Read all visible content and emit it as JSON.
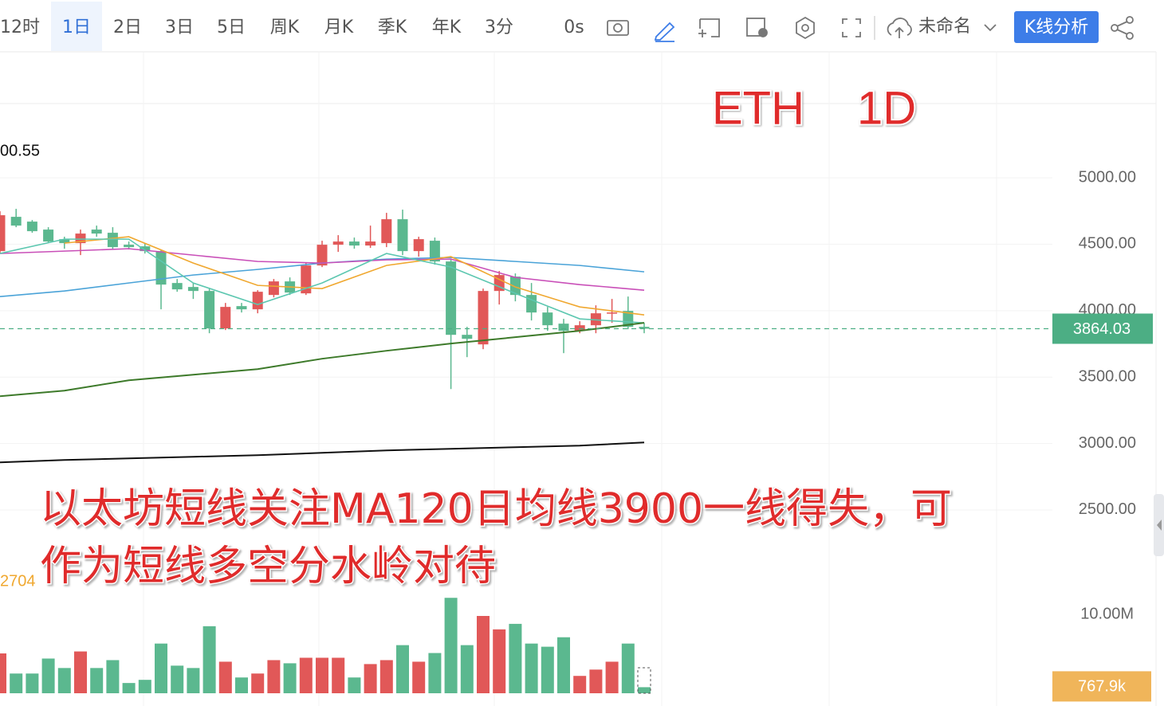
{
  "toolbar": {
    "intervals": [
      "12时",
      "1日",
      "2日",
      "3日",
      "5日",
      "周K",
      "月K",
      "季K",
      "年K",
      "3分"
    ],
    "active": 1,
    "timer": "0s",
    "layout_name": "未命名",
    "analysis_button": "K线分析"
  },
  "chart_data": [
    {
      "type": "candlestick",
      "title": "ETH",
      "subtitle": "1D",
      "annotation": [
        "以太坊短线关注MA120日均线3900一线得失，可",
        "作为短线多空分水岭对待"
      ],
      "ma_readout": "00.55",
      "up_color": "#e15858",
      "down_color": "#5bb88f",
      "open": [
        4448,
        4706,
        4670,
        4610,
        4538,
        4508,
        4610,
        4586,
        4496,
        4484,
        4448,
        4208,
        4178,
        4148,
        3866,
        4034,
        4010,
        4118,
        4220,
        4130,
        4340,
        4496,
        4520,
        4490,
        4508,
        4688,
        4448,
        4526,
        4370,
        3818,
        3746,
        4148,
        4256,
        4118,
        3986,
        3902,
        3848,
        3890,
        3980,
        3998,
        3878
      ],
      "high": [
        4748,
        4766,
        4682,
        4628,
        4556,
        4610,
        4640,
        4628,
        4520,
        4508,
        4460,
        4238,
        4208,
        4166,
        4058,
        4058,
        4154,
        4238,
        4250,
        4358,
        4526,
        4568,
        4550,
        4640,
        4736,
        4760,
        4556,
        4550,
        4388,
        3878,
        4166,
        4298,
        4280,
        4208,
        4028,
        3938,
        3920,
        4040,
        4088,
        4106,
        3908
      ],
      "low": [
        4430,
        4628,
        4586,
        4508,
        4466,
        4418,
        4556,
        4460,
        4460,
        4430,
        4010,
        4142,
        4088,
        3830,
        3854,
        3986,
        3980,
        4100,
        4118,
        4118,
        4328,
        4442,
        4466,
        4472,
        4478,
        4418,
        4406,
        4346,
        3410,
        3650,
        3710,
        4046,
        4070,
        3926,
        3848,
        3680,
        3830,
        3830,
        3908,
        3860,
        3830
      ],
      "close": [
        4718,
        4640,
        4598,
        4520,
        4508,
        4580,
        4580,
        4478,
        4478,
        4448,
        4196,
        4160,
        4148,
        3866,
        4028,
        4010,
        4142,
        4220,
        4136,
        4340,
        4496,
        4520,
        4490,
        4520,
        4688,
        4448,
        4538,
        4370,
        3818,
        3788,
        4148,
        4268,
        4118,
        3986,
        3890,
        3848,
        3890,
        3980,
        3986,
        3878,
        3864
      ],
      "lines": [
        {
          "color": "#4aa3d8",
          "x": [
            0,
            4,
            8,
            12,
            16,
            20,
            24,
            28,
            32,
            36,
            40
          ],
          "values": [
            4106,
            4148,
            4208,
            4268,
            4310,
            4358,
            4388,
            4400,
            4370,
            4340,
            4292
          ]
        },
        {
          "color": "#c94fb8",
          "x": [
            0,
            4,
            8,
            12,
            16,
            20,
            24,
            28,
            32,
            36,
            40
          ],
          "values": [
            4430,
            4448,
            4466,
            4418,
            4370,
            4358,
            4382,
            4388,
            4250,
            4196,
            4154
          ]
        },
        {
          "color": "#f0a830",
          "x": [
            4,
            8,
            12,
            16,
            20,
            24,
            28,
            32,
            36,
            40
          ],
          "values": [
            4508,
            4556,
            4358,
            4190,
            4166,
            4340,
            4406,
            4178,
            4028,
            3968
          ]
        },
        {
          "color": "#5cc7b0",
          "x": [
            0,
            4,
            8,
            12,
            16,
            20,
            24,
            28,
            32,
            36,
            40
          ],
          "values": [
            4430,
            4538,
            4538,
            4208,
            4046,
            4208,
            4430,
            4328,
            4130,
            3938,
            3908
          ]
        },
        {
          "color": "#3d7a2a",
          "x": [
            0,
            4,
            8,
            12,
            16,
            20,
            24,
            28,
            32,
            36,
            40
          ],
          "values": [
            3356,
            3398,
            3476,
            3518,
            3560,
            3638,
            3698,
            3752,
            3800,
            3848,
            3908
          ]
        },
        {
          "color": "#111111",
          "x": [
            0,
            4,
            8,
            12,
            16,
            20,
            24,
            28,
            32,
            36,
            40
          ],
          "values": [
            2858,
            2876,
            2888,
            2900,
            2912,
            2930,
            2948,
            2960,
            2972,
            2984,
            3008
          ]
        }
      ],
      "last_price": 3864.03,
      "last_price_color": "#4cae84",
      "ylim": [
        1870,
        5948
      ],
      "yticks": [
        {
          "value": 5000,
          "label": "5000.00"
        },
        {
          "value": 4500,
          "label": "4500.00"
        },
        {
          "value": 4000,
          "label": "4000.00"
        },
        {
          "value": 3500,
          "label": "3500.00"
        },
        {
          "value": 3000,
          "label": "3000.00"
        },
        {
          "value": 2500,
          "label": "2500.00"
        }
      ],
      "grid": true
    },
    {
      "type": "bar",
      "ma_readout": "2704",
      "ma_color": "#f0a830",
      "values": [
        5.05,
        2.5,
        2.5,
        4.4,
        3.2,
        5.3,
        3.2,
        4.2,
        1.3,
        1.7,
        6.3,
        3.5,
        3.2,
        8.5,
        4.0,
        2.0,
        2.5,
        4.2,
        3.8,
        4.5,
        4.5,
        4.5,
        2.0,
        3.7,
        4.2,
        6.1,
        4.0,
        5.1,
        12.1,
        6.1,
        9.8,
        8.1,
        8.8,
        6.3,
        5.9,
        7.1,
        2.2,
        3.0,
        4.0,
        6.3,
        0.7679
      ],
      "last_value": 0.7679,
      "last_value_label": "767.9k",
      "last_value_color": "#f0b55a",
      "ylim": [
        0,
        12.63
      ],
      "yticks": [
        {
          "value": 10,
          "label": "10.00M"
        }
      ]
    }
  ]
}
